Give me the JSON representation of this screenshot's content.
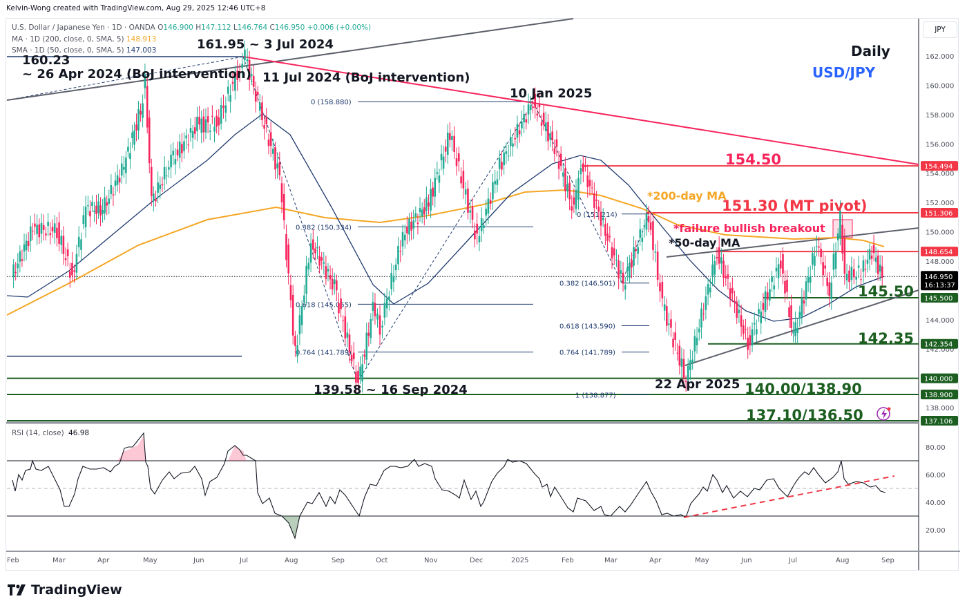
{
  "header": {
    "credit": "Kelvin-Wong created with TradingView.com, Aug 29, 2025 12:46 UTC+8",
    "symbol_line": "U.S. Dollar / Japanese Yen · 1D · OANDA",
    "ohlc": {
      "o_label": "O",
      "o": "146.900",
      "h_label": "H",
      "h": "147.112",
      "l_label": "L",
      "l": "146.764",
      "c_label": "C",
      "c": "146.950",
      "change": "+0.006 (+0.00%)"
    },
    "ma200_label": "MA · 1D (200, close, 0, SMA, 5)",
    "ma200_value": "148.913",
    "sma50_label": "SMA · 1D (50, close, 0, SMA, 5)",
    "sma50_value": "147.003",
    "currency_button": "JPY"
  },
  "branding": {
    "logo_text": "TradingView"
  },
  "colors": {
    "up": "#22ab94",
    "down": "#f7245c",
    "ma200": "#f5a623",
    "sma50": "#1e3a6e",
    "resistance": "#f23645",
    "support": "#1b5e20",
    "trend": "#5d606b",
    "fib": "#1e3a6e",
    "rsi_line": "#131722",
    "rsi_trend": "#f23645",
    "title_blue": "#2962ff"
  },
  "chart_data": {
    "type": "candlestick",
    "title": "Daily",
    "subtitle": "USD/JPY",
    "instrument": "U.S. Dollar / Japanese Yen · 1D · OANDA",
    "y_axis": {
      "label": "JPY",
      "ticks": [
        "162.000",
        "160.000",
        "158.000",
        "156.000",
        "154.000",
        "152.000",
        "150.000",
        "148.000",
        "144.000",
        "142.000",
        "138.000"
      ],
      "range": [
        136.5,
        163
      ]
    },
    "x_axis": {
      "ticks": [
        "Feb",
        "Mar",
        "Apr",
        "May",
        "Jun",
        "Jul",
        "Aug",
        "Sep",
        "Oct",
        "Nov",
        "Dec",
        "2025",
        "Feb",
        "Mar",
        "Apr",
        "May",
        "Jun",
        "Jul",
        "Aug",
        "Sep"
      ]
    },
    "price_path": [
      [
        "2024-02-01",
        146.9
      ],
      [
        "2024-02-15",
        150.2
      ],
      [
        "2024-03-01",
        150.1
      ],
      [
        "2024-03-11",
        146.9
      ],
      [
        "2024-03-20",
        151.6
      ],
      [
        "2024-04-01",
        151.5
      ],
      [
        "2024-04-15",
        154.5
      ],
      [
        "2024-04-26",
        158.3
      ],
      [
        "2024-04-29",
        160.23
      ],
      [
        "2024-05-03",
        152.0
      ],
      [
        "2024-05-15",
        154.8
      ],
      [
        "2024-05-31",
        157.3
      ],
      [
        "2024-06-14",
        157.4
      ],
      [
        "2024-06-28",
        160.9
      ],
      [
        "2024-07-03",
        161.95
      ],
      [
        "2024-07-11",
        158.8
      ],
      [
        "2024-07-25",
        153.8
      ],
      [
        "2024-08-05",
        141.7
      ],
      [
        "2024-08-15",
        149.3
      ],
      [
        "2024-08-30",
        146.2
      ],
      [
        "2024-09-16",
        139.58
      ],
      [
        "2024-09-26",
        144.8
      ],
      [
        "2024-10-01",
        143.5
      ],
      [
        "2024-10-15",
        149.8
      ],
      [
        "2024-11-01",
        152.0
      ],
      [
        "2024-11-15",
        156.7
      ],
      [
        "2024-12-03",
        149.4
      ],
      [
        "2024-12-18",
        154.5
      ],
      [
        "2025-01-10",
        158.88
      ],
      [
        "2025-01-24",
        155.8
      ],
      [
        "2025-02-07",
        151.3
      ],
      [
        "2025-02-12",
        154.8
      ],
      [
        "2025-03-11",
        146.5
      ],
      [
        "2025-03-28",
        151.2
      ],
      [
        "2025-04-07",
        145.0
      ],
      [
        "2025-04-22",
        139.88
      ],
      [
        "2025-05-12",
        148.6
      ],
      [
        "2025-06-02",
        142.4
      ],
      [
        "2025-06-23",
        148.0
      ],
      [
        "2025-07-01",
        142.7
      ],
      [
        "2025-07-16",
        149.2
      ],
      [
        "2025-07-24",
        145.9
      ],
      [
        "2025-08-01",
        151.0
      ],
      [
        "2025-08-04",
        147.0
      ],
      [
        "2025-08-15",
        147.2
      ],
      [
        "2025-08-22",
        148.7
      ],
      [
        "2025-08-29",
        146.95
      ]
    ],
    "last_price": "146.950",
    "countdown": "16:13:37",
    "indicators": [
      {
        "name": "MA 200-day",
        "last": 148.913
      },
      {
        "name": "SMA 50-day",
        "last": 147.003
      }
    ],
    "horizontal_levels": [
      {
        "value": 154.5,
        "label": "154.50",
        "axis_tag": "154.494",
        "kind": "resistance"
      },
      {
        "value": 151.3,
        "label": "151.30 (MT pivot)",
        "axis_tag": "151.306",
        "kind": "resistance"
      },
      {
        "value": 148.654,
        "label": "",
        "axis_tag": "148.654",
        "kind": "resistance"
      },
      {
        "value": 145.5,
        "label": "145.50",
        "axis_tag": "145.500",
        "kind": "support"
      },
      {
        "value": 142.354,
        "label": "142.35",
        "axis_tag": "142.354",
        "kind": "support"
      },
      {
        "value": 140.0,
        "label": "140.00/138.90",
        "axis_tag": "140.000",
        "kind": "support"
      },
      {
        "value": 138.9,
        "label": "",
        "axis_tag": "138.900",
        "kind": "support"
      },
      {
        "value": 137.106,
        "label": "137.10/136.50",
        "axis_tag": "137.106",
        "kind": "support"
      }
    ],
    "fib_retracement_1": [
      {
        "level": "0.382 (150.334)",
        "value": 150.334
      },
      {
        "level": "0.618 (145.055)",
        "value": 145.055
      },
      {
        "level": "0.764 (141.789)",
        "value": 141.789
      }
    ],
    "fib_retracement_2": [
      {
        "level": "0 (158.880)",
        "value": 158.88
      },
      {
        "level": "0 (151.214)",
        "value": 151.214
      },
      {
        "level": "0.382 (146.501)",
        "value": 146.501
      },
      {
        "level": "0.618 (143.590)",
        "value": 143.59
      },
      {
        "level": "0.764 (141.789)",
        "value": 141.789
      },
      {
        "level": "1 (138.877)",
        "value": 138.877
      }
    ],
    "annotations": [
      {
        "text": "161.95 ~ 3 Jul 2024"
      },
      {
        "text": "160.23"
      },
      {
        "text": "~ 26 Apr 2024 (BoJ intervention)"
      },
      {
        "text": "11 Jul 2024 (BoJ intervention)"
      },
      {
        "text": "10 Jan 2025"
      },
      {
        "text": "139.58 ~ 16 Sep 2024"
      },
      {
        "text": "22 Apr 2025"
      },
      {
        "text": "*200-day MA"
      },
      {
        "text": "*50-day MA"
      },
      {
        "text": "*failure bullish breakout"
      }
    ],
    "rsi": {
      "label": "RSI (14, close)",
      "value": "46.98",
      "ticks": [
        "80.00",
        "60.00",
        "40.00",
        "20.00"
      ],
      "upper": 70,
      "mid": 50,
      "lower": 30,
      "path": [
        [
          18,
          56
        ],
        [
          22,
          48
        ],
        [
          27,
          60
        ],
        [
          32,
          56
        ],
        [
          37,
          63
        ],
        [
          44,
          64
        ],
        [
          47,
          70
        ],
        [
          52,
          64
        ],
        [
          60,
          63
        ],
        [
          70,
          66
        ],
        [
          77,
          59
        ],
        [
          87,
          49
        ],
        [
          93,
          37
        ],
        [
          100,
          37
        ],
        [
          108,
          46
        ],
        [
          113,
          57
        ],
        [
          120,
          66
        ],
        [
          130,
          64
        ],
        [
          140,
          64
        ],
        [
          150,
          65
        ],
        [
          160,
          62
        ],
        [
          166,
          66
        ],
        [
          173,
          68
        ],
        [
          180,
          79
        ],
        [
          186,
          80
        ],
        [
          192,
          80
        ],
        [
          200,
          85
        ],
        [
          208,
          90
        ],
        [
          211,
          69
        ],
        [
          214,
          66
        ],
        [
          218,
          50
        ],
        [
          224,
          46
        ],
        [
          235,
          56
        ],
        [
          245,
          62
        ],
        [
          252,
          57
        ],
        [
          262,
          61
        ],
        [
          275,
          62
        ],
        [
          282,
          66
        ],
        [
          292,
          57
        ],
        [
          297,
          45
        ],
        [
          304,
          55
        ],
        [
          314,
          58
        ],
        [
          325,
          68
        ],
        [
          330,
          77
        ],
        [
          340,
          81
        ],
        [
          347,
          78
        ],
        [
          352,
          74
        ],
        [
          357,
          74
        ],
        [
          370,
          70
        ],
        [
          373,
          47
        ],
        [
          380,
          39
        ],
        [
          390,
          43
        ],
        [
          398,
          32
        ],
        [
          408,
          30
        ],
        [
          418,
          25
        ],
        [
          427,
          14
        ],
        [
          434,
          30
        ],
        [
          445,
          40
        ],
        [
          452,
          39
        ],
        [
          462,
          47
        ],
        [
          472,
          37
        ],
        [
          478,
          44
        ],
        [
          485,
          39
        ],
        [
          492,
          49
        ],
        [
          500,
          45
        ],
        [
          512,
          36
        ],
        [
          520,
          30
        ],
        [
          528,
          44
        ],
        [
          536,
          53
        ],
        [
          545,
          52
        ],
        [
          556,
          63
        ],
        [
          565,
          66
        ],
        [
          572,
          66
        ],
        [
          580,
          65
        ],
        [
          590,
          66
        ],
        [
          600,
          71
        ],
        [
          606,
          66
        ],
        [
          615,
          68
        ],
        [
          625,
          66
        ],
        [
          630,
          57
        ],
        [
          640,
          49
        ],
        [
          650,
          48
        ],
        [
          660,
          45
        ],
        [
          665,
          43
        ],
        [
          672,
          56
        ],
        [
          682,
          42
        ],
        [
          689,
          48
        ],
        [
          696,
          37
        ],
        [
          700,
          40
        ],
        [
          712,
          55
        ],
        [
          720,
          61
        ],
        [
          730,
          66
        ],
        [
          735,
          71
        ],
        [
          742,
          69
        ],
        [
          752,
          70
        ],
        [
          762,
          68
        ],
        [
          775,
          60
        ],
        [
          781,
          57
        ],
        [
          785,
          51
        ],
        [
          792,
          53
        ],
        [
          797,
          44
        ],
        [
          803,
          51
        ],
        [
          812,
          44
        ],
        [
          822,
          36
        ],
        [
          830,
          33
        ],
        [
          836,
          43
        ],
        [
          848,
          41
        ],
        [
          855,
          37
        ],
        [
          860,
          34
        ],
        [
          870,
          37
        ],
        [
          875,
          31
        ],
        [
          884,
          30
        ],
        [
          897,
          37
        ],
        [
          905,
          33
        ],
        [
          913,
          38
        ],
        [
          925,
          47
        ],
        [
          936,
          55
        ],
        [
          942,
          48
        ],
        [
          950,
          41
        ],
        [
          958,
          31
        ],
        [
          966,
          32
        ],
        [
          975,
          30
        ],
        [
          986,
          31
        ],
        [
          993,
          29
        ],
        [
          1000,
          39
        ],
        [
          1005,
          42
        ],
        [
          1012,
          46
        ],
        [
          1018,
          51
        ],
        [
          1024,
          48
        ],
        [
          1032,
          60
        ],
        [
          1038,
          56
        ],
        [
          1046,
          47
        ],
        [
          1052,
          52
        ],
        [
          1062,
          43
        ],
        [
          1072,
          48
        ],
        [
          1082,
          44
        ],
        [
          1092,
          50
        ],
        [
          1100,
          49
        ],
        [
          1110,
          56
        ],
        [
          1120,
          57
        ],
        [
          1128,
          50
        ],
        [
          1140,
          44
        ],
        [
          1150,
          53
        ],
        [
          1157,
          58
        ],
        [
          1165,
          62
        ],
        [
          1171,
          60
        ],
        [
          1178,
          65
        ],
        [
          1185,
          60
        ],
        [
          1195,
          54
        ],
        [
          1206,
          58
        ],
        [
          1213,
          62
        ],
        [
          1218,
          70
        ],
        [
          1222,
          57
        ],
        [
          1228,
          53
        ],
        [
          1240,
          55
        ],
        [
          1250,
          54
        ],
        [
          1260,
          51
        ],
        [
          1268,
          52
        ],
        [
          1275,
          48
        ],
        [
          1282,
          47
        ]
      ]
    },
    "rsi_trendline": {
      "from": [
        990,
        29
      ],
      "to": [
        1295,
        59
      ]
    }
  }
}
